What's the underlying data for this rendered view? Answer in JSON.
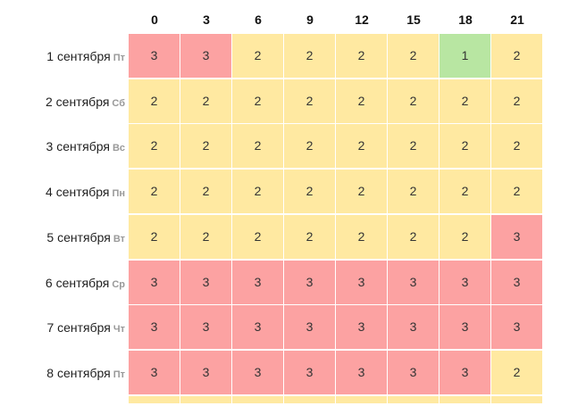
{
  "columns": [
    "0",
    "3",
    "6",
    "9",
    "12",
    "15",
    "18",
    "21"
  ],
  "rows": [
    {
      "date": "1 сентября",
      "dow": "Пт",
      "values": [
        3,
        3,
        2,
        2,
        2,
        2,
        1,
        2
      ]
    },
    {
      "date": "2 сентября",
      "dow": "Сб",
      "values": [
        2,
        2,
        2,
        2,
        2,
        2,
        2,
        2
      ]
    },
    {
      "date": "3 сентября",
      "dow": "Вс",
      "values": [
        2,
        2,
        2,
        2,
        2,
        2,
        2,
        2
      ]
    },
    {
      "date": "4 сентября",
      "dow": "Пн",
      "values": [
        2,
        2,
        2,
        2,
        2,
        2,
        2,
        2
      ]
    },
    {
      "date": "5 сентября",
      "dow": "Вт",
      "values": [
        2,
        2,
        2,
        2,
        2,
        2,
        2,
        3
      ]
    },
    {
      "date": "6 сентября",
      "dow": "Ср",
      "values": [
        3,
        3,
        3,
        3,
        3,
        3,
        3,
        3
      ]
    },
    {
      "date": "7 сентября",
      "dow": "Чт",
      "values": [
        3,
        3,
        3,
        3,
        3,
        3,
        3,
        3
      ]
    },
    {
      "date": "8 сентября",
      "dow": "Пт",
      "values": [
        3,
        3,
        3,
        3,
        3,
        3,
        3,
        2
      ]
    }
  ],
  "colors": {
    "1": "#b8e6a2",
    "2": "#ffe9a1",
    "3": "#fca2a2"
  }
}
